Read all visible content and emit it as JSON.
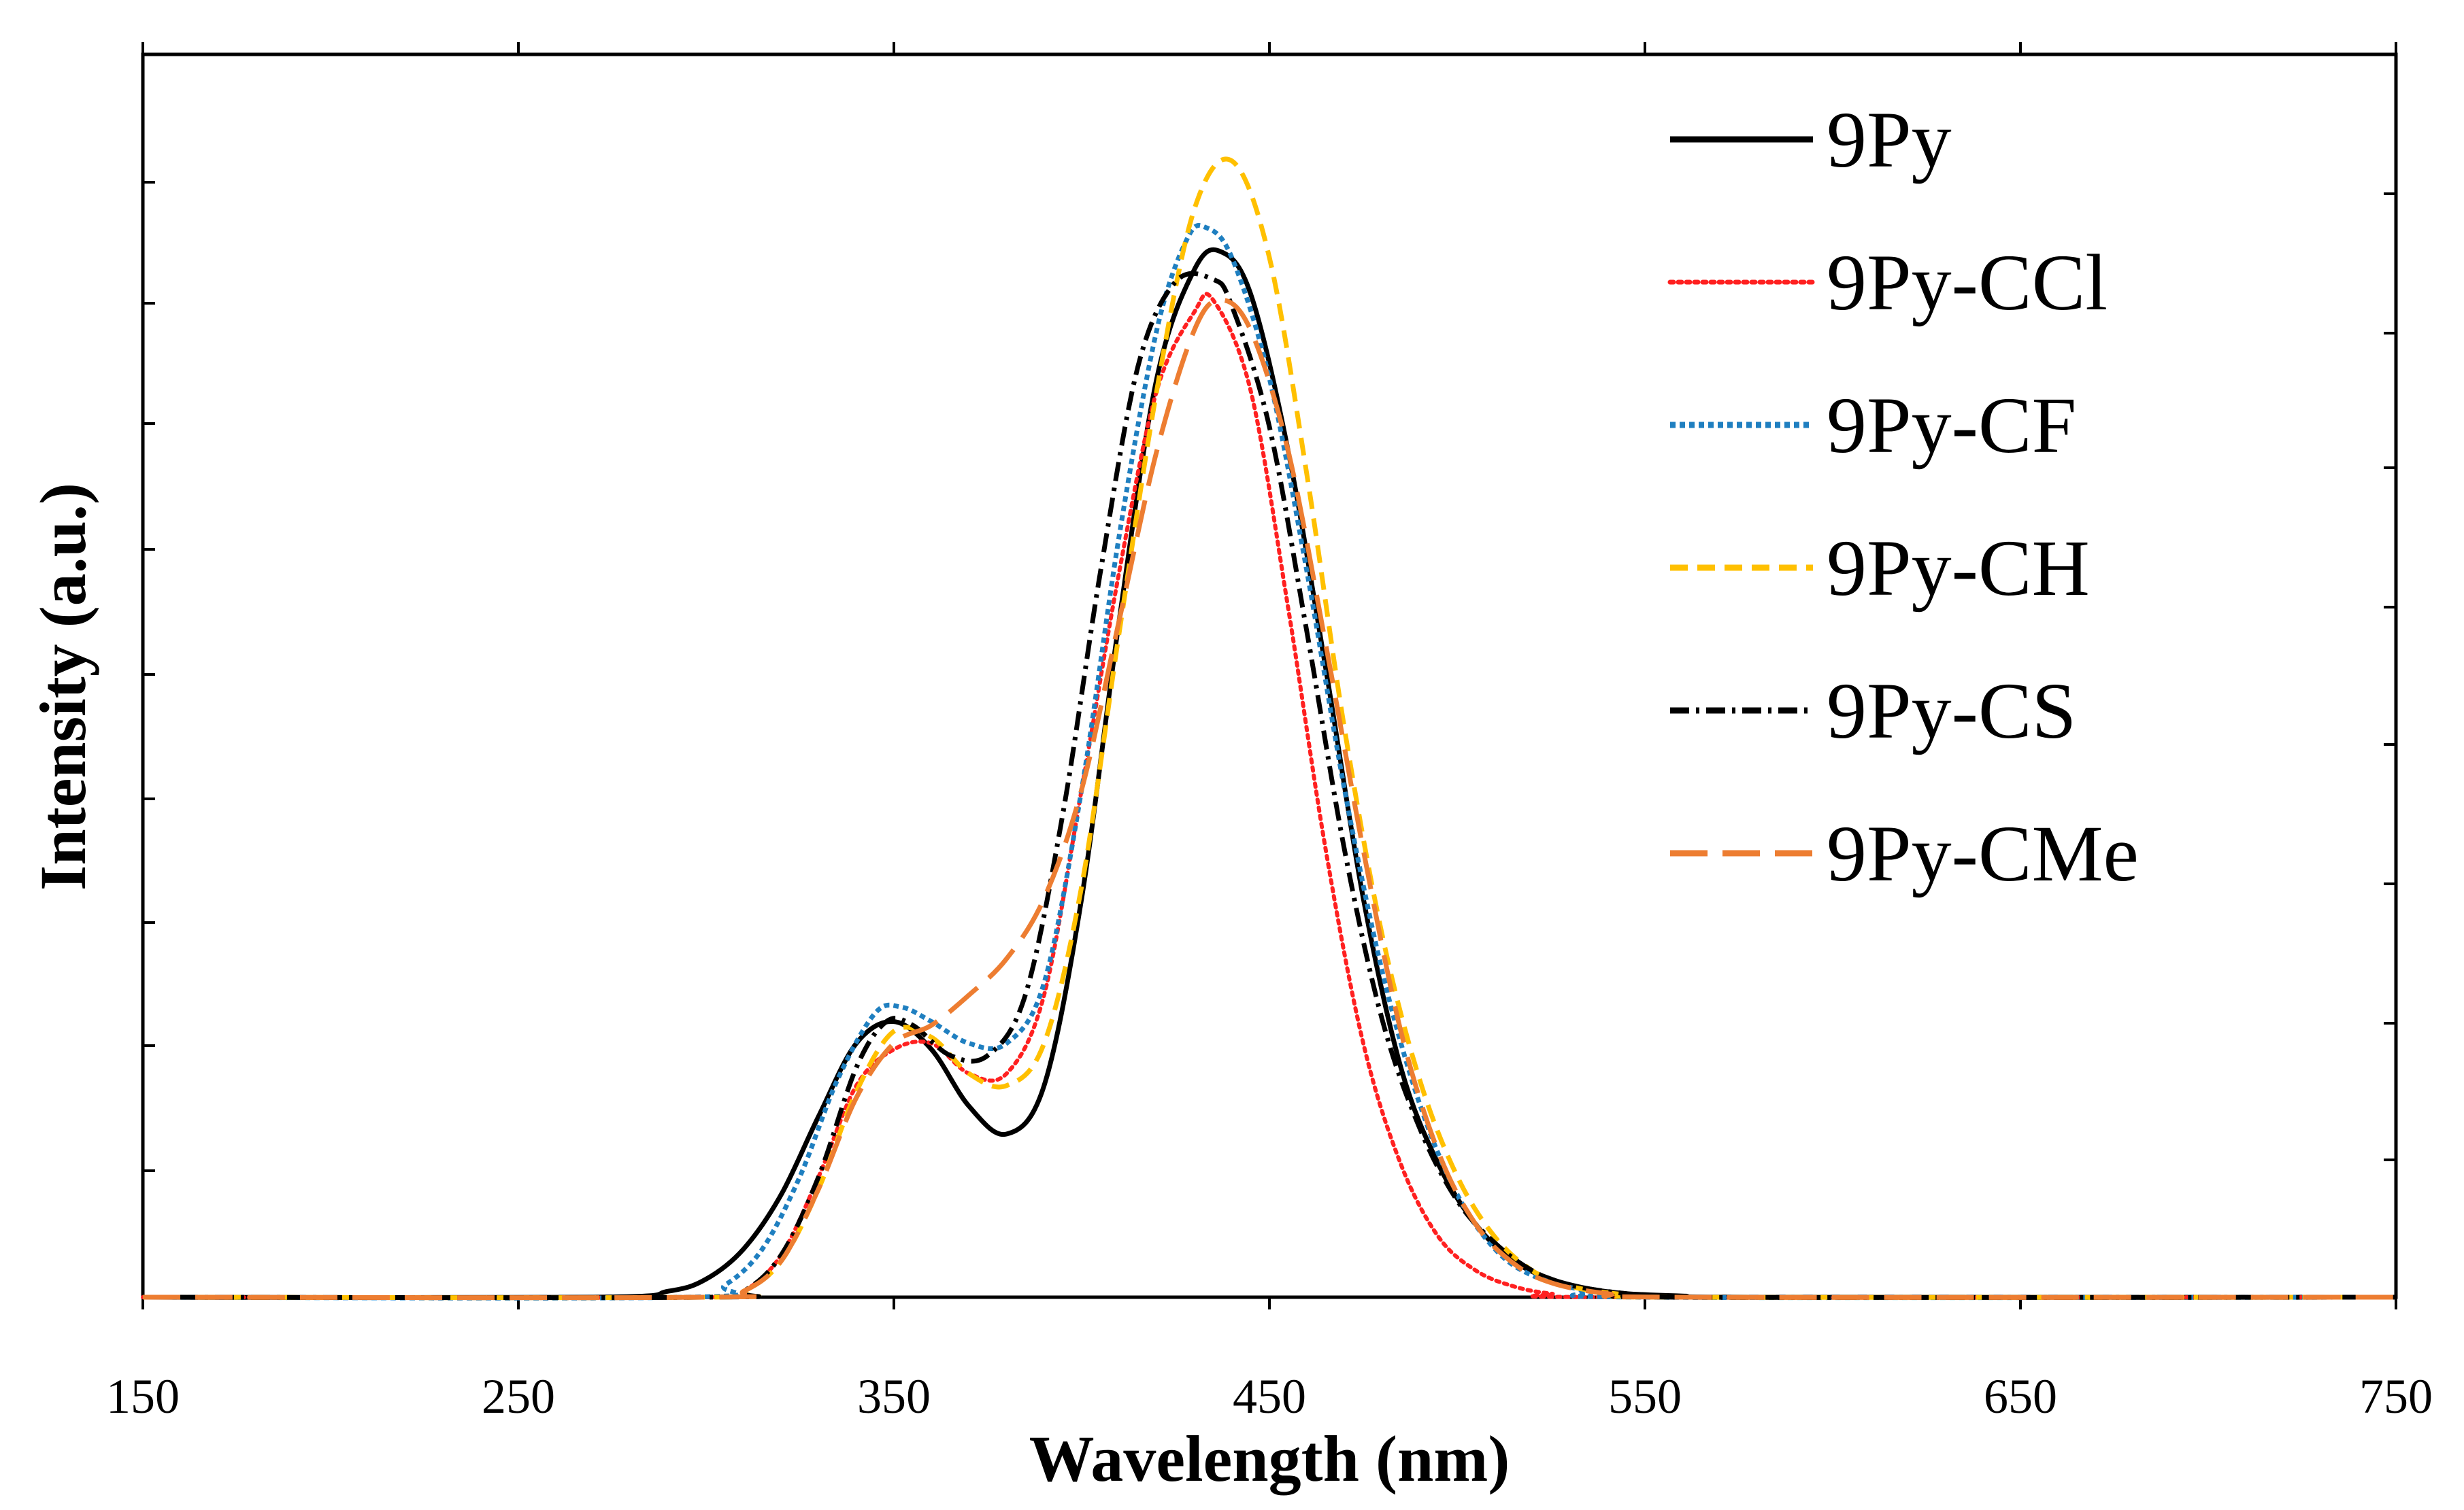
{
  "chart_data": {
    "type": "line",
    "title": "",
    "xlabel": "Wavelength (nm)",
    "ylabel": "Intensity  (a.u.)",
    "xlim": [
      150,
      750
    ],
    "ylim": [
      0,
      1.0
    ],
    "xticks": [
      150,
      250,
      350,
      450,
      550,
      650,
      750
    ],
    "xtick_labels": [
      "150",
      "250",
      "350",
      "450",
      "550",
      "650",
      "750"
    ],
    "legend_position": "top-right",
    "series": [
      {
        "name": "9Py",
        "color": "#000000",
        "dash": "solid",
        "x": [
          150,
          270,
          290,
          300,
          310,
          320,
          330,
          340,
          350,
          360,
          370,
          380,
          390,
          400,
          410,
          420,
          430,
          437,
          445,
          455,
          465,
          475,
          485,
          495,
          505,
          515,
          525,
          535,
          545,
          560,
          580,
          750
        ],
        "y": [
          0,
          0,
          0.005,
          0.015,
          0.04,
          0.085,
          0.15,
          0.21,
          0.228,
          0.205,
          0.158,
          0.135,
          0.175,
          0.33,
          0.56,
          0.76,
          0.85,
          0.865,
          0.83,
          0.7,
          0.52,
          0.33,
          0.19,
          0.11,
          0.06,
          0.03,
          0.015,
          0.007,
          0.003,
          0.001,
          0,
          0
        ]
      },
      {
        "name": "9Py-CCl",
        "color": "#ff2020",
        "dash": "dotted",
        "x": [
          150,
          300,
          310,
          320,
          330,
          340,
          350,
          360,
          370,
          380,
          390,
          400,
          410,
          420,
          430,
          435,
          445,
          455,
          465,
          475,
          485,
          495,
          505,
          515,
          525,
          540,
          750
        ],
        "y": [
          0,
          0,
          0.005,
          0.035,
          0.1,
          0.175,
          0.205,
          0.21,
          0.185,
          0.185,
          0.25,
          0.42,
          0.6,
          0.75,
          0.815,
          0.825,
          0.75,
          0.57,
          0.37,
          0.21,
          0.11,
          0.05,
          0.022,
          0.009,
          0.003,
          0,
          0
        ]
      },
      {
        "name": "9Py-CF",
        "color": "#1f7fc0",
        "dash": "8,6",
        "x": [
          150,
          295,
          305,
          315,
          325,
          335,
          345,
          352,
          360,
          370,
          380,
          390,
          400,
          410,
          420,
          428,
          433,
          440,
          450,
          460,
          470,
          480,
          490,
          500,
          510,
          520,
          535,
          550,
          750
        ],
        "y": [
          0,
          0,
          0.01,
          0.04,
          0.1,
          0.18,
          0.235,
          0.24,
          0.228,
          0.21,
          0.21,
          0.26,
          0.42,
          0.63,
          0.8,
          0.875,
          0.885,
          0.86,
          0.76,
          0.6,
          0.42,
          0.27,
          0.16,
          0.085,
          0.04,
          0.018,
          0.005,
          0,
          0
        ]
      },
      {
        "name": "9Py-CH",
        "color": "#ffc000",
        "dash": "26,14",
        "x": [
          150,
          300,
          310,
          320,
          330,
          340,
          350,
          360,
          370,
          380,
          390,
          400,
          410,
          420,
          430,
          440,
          450,
          460,
          470,
          480,
          490,
          500,
          510,
          520,
          530,
          545,
          560,
          750
        ],
        "y": [
          0,
          0,
          0.005,
          0.03,
          0.09,
          0.17,
          0.22,
          0.215,
          0.185,
          0.175,
          0.21,
          0.34,
          0.55,
          0.75,
          0.9,
          0.94,
          0.86,
          0.68,
          0.47,
          0.3,
          0.18,
          0.1,
          0.05,
          0.022,
          0.009,
          0.002,
          0,
          0
        ]
      },
      {
        "name": "9Py-CS",
        "color": "#000000",
        "dash": "28,10,5,10",
        "x": [
          150,
          300,
          310,
          320,
          330,
          340,
          348,
          355,
          365,
          375,
          385,
          395,
          405,
          415,
          425,
          435,
          440,
          450,
          460,
          470,
          480,
          490,
          500,
          510,
          520,
          530,
          545,
          560,
          750
        ],
        "y": [
          0,
          0,
          0.005,
          0.035,
          0.1,
          0.19,
          0.228,
          0.225,
          0.2,
          0.2,
          0.25,
          0.4,
          0.6,
          0.77,
          0.84,
          0.842,
          0.82,
          0.72,
          0.55,
          0.37,
          0.23,
          0.14,
          0.08,
          0.045,
          0.022,
          0.01,
          0.003,
          0,
          0
        ]
      },
      {
        "name": "9Py-CMe",
        "color": "#ed7d31",
        "dash": "55,22",
        "x": [
          150,
          300,
          310,
          320,
          330,
          340,
          350,
          360,
          370,
          380,
          390,
          400,
          410,
          420,
          430,
          437,
          445,
          455,
          465,
          475,
          485,
          495,
          505,
          515,
          525,
          540,
          560,
          750
        ],
        "y": [
          0,
          0,
          0.005,
          0.03,
          0.09,
          0.165,
          0.21,
          0.225,
          0.25,
          0.28,
          0.33,
          0.42,
          0.56,
          0.7,
          0.8,
          0.825,
          0.8,
          0.7,
          0.54,
          0.37,
          0.22,
          0.12,
          0.06,
          0.028,
          0.012,
          0.003,
          0,
          0
        ]
      }
    ]
  }
}
